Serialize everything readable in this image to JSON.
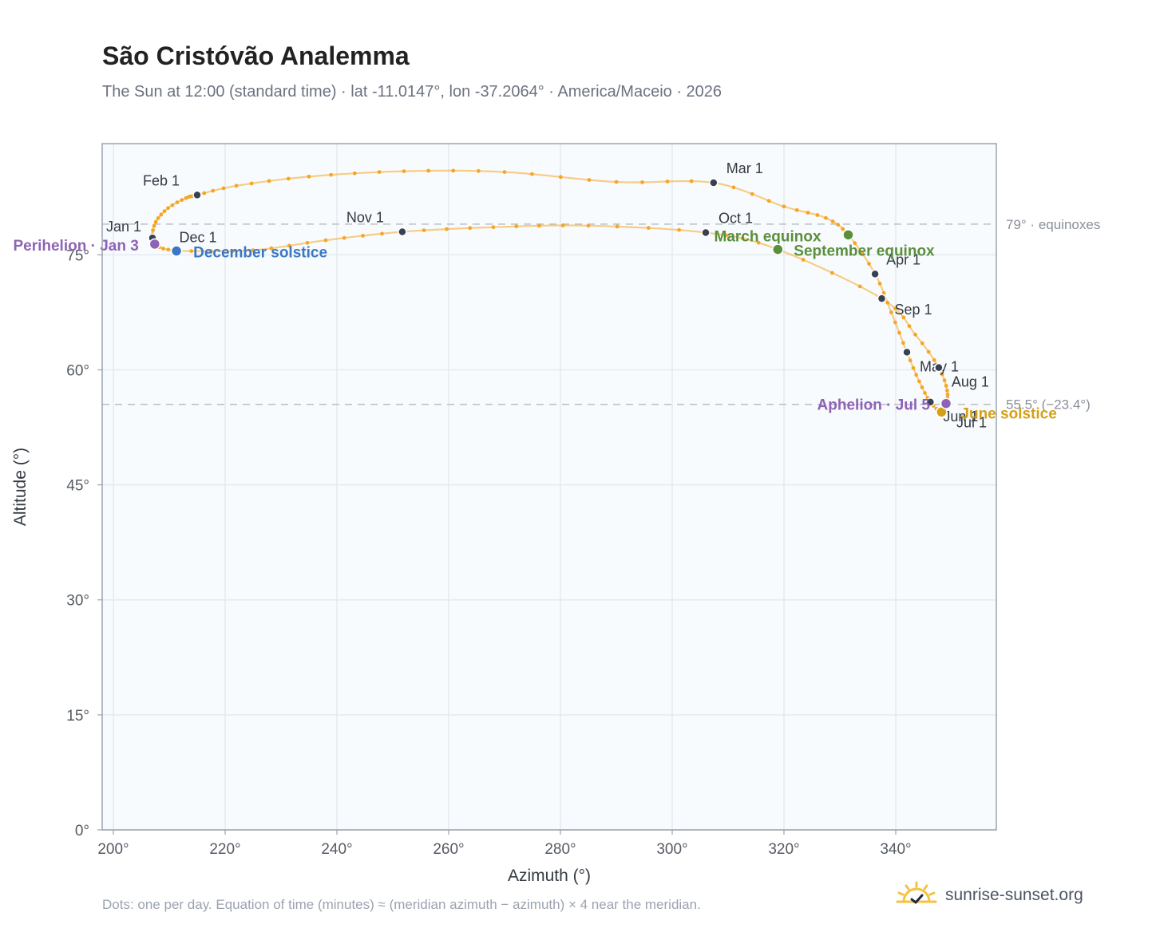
{
  "title": "São Cristóvão Analemma",
  "subtitle": "The Sun at 12:00 (standard time) · lat -11.0147°, lon -37.2064° · America/Maceio · 2026",
  "footnote": "Dots: one per day. Equation of time (minutes) ≈ (meridian azimuth − azimuth) × 4 near the meridian.",
  "brand": {
    "text": "sunrise-sunset.org",
    "icon": "sun-logo-icon"
  },
  "colors": {
    "path": "#f5a623",
    "month_dot": "#374151",
    "equinox": "#5a8f3c",
    "december_solstice": "#3b78c3",
    "june_solstice": "#d4a017",
    "aphelion_perihelion": "#8e63b5",
    "reference_line": "#b8bec6",
    "plot_bg": "#f8fbfe",
    "grid": "#e5eaf0"
  },
  "chart_data": {
    "type": "scatter",
    "xlabel": "Azimuth (°)",
    "ylabel": "Altitude (°)",
    "xlim": [
      198,
      358
    ],
    "ylim": [
      0,
      89.5
    ],
    "x_ticks": [
      200,
      220,
      240,
      260,
      280,
      300,
      320,
      340
    ],
    "x_tick_labels": [
      "200°",
      "220°",
      "240°",
      "260°",
      "280°",
      "300°",
      "320°",
      "340°"
    ],
    "y_ticks": [
      0,
      15,
      30,
      45,
      60,
      75
    ],
    "y_tick_labels": [
      "0°",
      "15°",
      "30°",
      "45°",
      "60°",
      "75°"
    ],
    "grid": true,
    "series_points_note_hidden": false,
    "path_keypoints": [
      {
        "date": "Dec 22",
        "az": 211.3,
        "alt": 75.5
      },
      {
        "date": "Dec 27",
        "az": 208.2,
        "alt": 76.0
      },
      {
        "date": "Jan 1",
        "az": 207.0,
        "alt": 77.2
      },
      {
        "date": "Jan 8",
        "az": 207.6,
        "alt": 79.3
      },
      {
        "date": "Jan 15",
        "az": 209.8,
        "alt": 81.1
      },
      {
        "date": "Jan 22",
        "az": 213.0,
        "alt": 82.4
      },
      {
        "date": "Feb 1",
        "az": 215.0,
        "alt": 82.8
      },
      {
        "date": "Feb 7",
        "az": 222.0,
        "alt": 84.0
      },
      {
        "date": "Feb 12",
        "az": 235.0,
        "alt": 85.2
      },
      {
        "date": "Feb 16",
        "az": 252.0,
        "alt": 85.9
      },
      {
        "date": "Feb 19",
        "az": 270.0,
        "alt": 85.8
      },
      {
        "date": "Feb 23",
        "az": 290.0,
        "alt": 84.5
      },
      {
        "date": "Mar 1",
        "az": 307.4,
        "alt": 84.4
      },
      {
        "date": "Mar 8",
        "az": 320.0,
        "alt": 81.3
      },
      {
        "date": "Mar 14",
        "az": 327.5,
        "alt": 79.8
      },
      {
        "date": "Mar 20",
        "az": 331.5,
        "alt": 77.6
      },
      {
        "date": "Apr 1",
        "az": 336.3,
        "alt": 72.5
      },
      {
        "date": "Apr 15",
        "az": 339.2,
        "alt": 67.5
      },
      {
        "date": "May 1",
        "az": 342.0,
        "alt": 62.3
      },
      {
        "date": "May 16",
        "az": 344.2,
        "alt": 58.5
      },
      {
        "date": "Jun 1",
        "az": 346.2,
        "alt": 55.8
      },
      {
        "date": "Jun 21",
        "az": 348.2,
        "alt": 54.5
      },
      {
        "date": "Jul 5",
        "az": 349.0,
        "alt": 55.6
      },
      {
        "date": "Jul 16",
        "az": 349.2,
        "alt": 57.3
      },
      {
        "date": "Aug 1",
        "az": 347.7,
        "alt": 60.3
      },
      {
        "date": "Aug 16",
        "az": 343.5,
        "alt": 64.6
      },
      {
        "date": "Sep 1",
        "az": 337.5,
        "alt": 69.3
      },
      {
        "date": "Sep 22",
        "az": 318.9,
        "alt": 75.7
      },
      {
        "date": "Oct 1",
        "az": 306.0,
        "alt": 77.9
      },
      {
        "date": "Oct 10",
        "az": 285.0,
        "alt": 78.8
      },
      {
        "date": "Oct 18",
        "az": 268.0,
        "alt": 78.6
      },
      {
        "date": "Nov 1",
        "az": 251.7,
        "alt": 78.0
      },
      {
        "date": "Nov 10",
        "az": 238.0,
        "alt": 76.9
      },
      {
        "date": "Nov 20",
        "az": 225.0,
        "alt": 75.6
      },
      {
        "date": "Dec 1",
        "az": 211.5,
        "alt": 75.5
      }
    ],
    "month_markers": [
      {
        "label": "Jan 1",
        "az": 207.0,
        "alt": 77.2,
        "ldx": -58,
        "ldy": -8
      },
      {
        "label": "Feb 1",
        "az": 215.0,
        "alt": 82.8,
        "ldx": -68,
        "ldy": -12
      },
      {
        "label": "Mar 1",
        "az": 307.4,
        "alt": 84.4,
        "ldx": 16,
        "ldy": -12
      },
      {
        "label": "Apr 1",
        "az": 336.3,
        "alt": 72.5,
        "ldx": 14,
        "ldy": -12
      },
      {
        "label": "May 1",
        "az": 342.0,
        "alt": 62.3,
        "ldx": 16,
        "ldy": 24
      },
      {
        "label": "Jun 1",
        "az": 346.2,
        "alt": 55.8,
        "ldx": 16,
        "ldy": 24
      },
      {
        "label": "Jul 1",
        "az": 348.0,
        "alt": 54.6,
        "ldx": 20,
        "ldy": 20
      },
      {
        "label": "Aug 1",
        "az": 347.7,
        "alt": 60.3,
        "ldx": 16,
        "ldy": 24
      },
      {
        "label": "Sep 1",
        "az": 337.5,
        "alt": 69.3,
        "ldx": 16,
        "ldy": 20
      },
      {
        "label": "Oct 1",
        "az": 306.0,
        "alt": 77.9,
        "ldx": 16,
        "ldy": -12
      },
      {
        "label": "Nov 1",
        "az": 251.7,
        "alt": 78.0,
        "ldx": -70,
        "ldy": -12
      },
      {
        "label": "Dec 1",
        "az": 211.5,
        "alt": 75.5,
        "ldx": 2,
        "ldy": -11
      }
    ],
    "events": [
      {
        "label": "March equinox",
        "az": 331.5,
        "alt": 77.6,
        "color": "#5a8f3c",
        "ldx": -168,
        "ldy": 8,
        "anchor": "start"
      },
      {
        "label": "September equinox",
        "az": 318.9,
        "alt": 75.7,
        "color": "#5a8f3c",
        "ldx": 20,
        "ldy": 8,
        "anchor": "start"
      },
      {
        "label": "December solstice",
        "az": 211.3,
        "alt": 75.5,
        "color": "#3b78c3",
        "ldx": 21,
        "ldy": 8,
        "anchor": "start"
      },
      {
        "label": "June solstice",
        "az": 348.2,
        "alt": 54.5,
        "color": "#d4a017",
        "ldx": 24,
        "ldy": 8,
        "anchor": "start"
      },
      {
        "label": "Perihelion · Jan 3",
        "az": 207.4,
        "alt": 76.4,
        "color": "#8e63b5",
        "ldx": -20,
        "ldy": 8,
        "anchor": "end"
      },
      {
        "label": "Aphelion · Jul 5",
        "az": 349.0,
        "alt": 55.6,
        "color": "#8e63b5",
        "ldx": -20,
        "ldy": 8,
        "anchor": "end"
      }
    ],
    "reference_lines": [
      {
        "alt": 79.0,
        "label": "79° · equinoxes"
      },
      {
        "alt": 55.5,
        "label": "55.5° (−23.4°)"
      }
    ]
  }
}
